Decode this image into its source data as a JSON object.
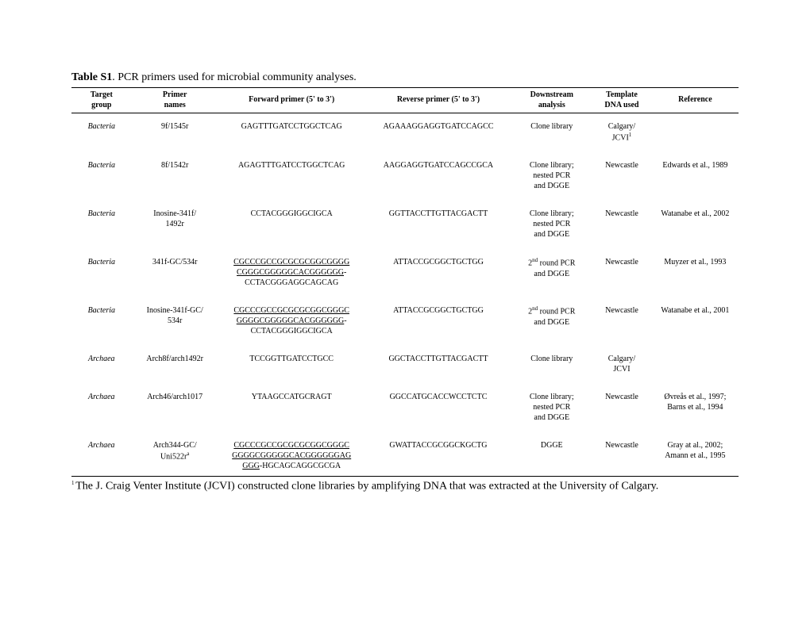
{
  "caption": {
    "label": "Table S1",
    "text": ". PCR primers used for microbial community analyses."
  },
  "headers": {
    "target": {
      "top": "Target",
      "bottom": "group"
    },
    "primer": {
      "top": "Primer",
      "bottom": "names"
    },
    "forward": "Forward primer (5' to 3')",
    "reverse": "Reverse primer (5' to 3')",
    "downstream": {
      "top": "Downstream",
      "bottom": "analysis"
    },
    "template": {
      "top": "Template",
      "bottom": "DNA used"
    },
    "reference": "Reference"
  },
  "rows": [
    {
      "target": "Bacteria",
      "primer": "9f/1545r",
      "forward_plain": "GAGTTTGATCCTGGCTCAG",
      "reverse": "AGAAAGGAGGTGATCCAGCC",
      "downstream": "Clone library",
      "template": "Calgary/\nJCVI¹",
      "reference": ""
    },
    {
      "target": "Bacteria",
      "primer": "8f/1542r",
      "forward_plain": "AGAGTTTGATCCTGGCTCAG",
      "reverse": "AAGGAGGTGATCCAGCCGCA",
      "downstream": "Clone library;\nnested PCR\nand DGGE",
      "template": "Newcastle",
      "reference": "Edwards et al., 1989"
    },
    {
      "target": "Bacteria",
      "primer": "Inosine-341f/\n1492r",
      "forward_plain": "CCTACGGGIGGCIGCA",
      "reverse": "GGTTACCTTGTTACGACTT",
      "downstream": "Clone library;\nnested PCR\nand  DGGE",
      "template": "Newcastle",
      "reference": "Watanabe et al., 2002"
    },
    {
      "target": "Bacteria",
      "primer": "341f-GC/534r",
      "forward_under": "CGCCCGCCGCGCGCGGCGGGG\nCGGGCGGGGGCACGGGGGG",
      "forward_after": "-\nCCTACGGGAGGCAGCAG",
      "reverse": "ATTACCGCGGCTGCTGG",
      "downstream_html": "2<sup>nd</sup> round PCR\nand DGGE",
      "template": "Newcastle",
      "reference": "Muyzer et al., 1993"
    },
    {
      "target": "Bacteria",
      "primer": "Inosine-341f-GC/\n534r",
      "forward_under": "CGCCCGCCGCGCGCGGCGGGC\nGGGGCGGGGGCACGGGGGG",
      "forward_after": "-\nCCTACGGGIGGCIGCA",
      "reverse": "ATTACCGCGGCTGCTGG",
      "downstream_html": "2<sup>nd</sup> round PCR\nand DGGE",
      "template": "Newcastle",
      "reference": "Watanabe et al., 2001"
    },
    {
      "target": "Archaea",
      "primer": "Arch8f/arch1492r",
      "forward_plain": "TCCGGTTGATCCTGCC",
      "reverse": "GGCTACCTTGTTACGACTT",
      "downstream": "Clone library",
      "template": "Calgary/\nJCVI",
      "reference": ""
    },
    {
      "target": "Archaea",
      "primer": "Arch46/arch1017",
      "forward_plain": "YTAAGCCATGCRAGT",
      "reverse": "GGCCATGCACCWCCTCTC",
      "downstream": "Clone library;\nnested PCR\nand DGGE",
      "template": "Newcastle",
      "reference": "Øvreås et al., 1997;\nBarns et al., 1994"
    },
    {
      "target": "Archaea",
      "primer_html": "Arch344-GC/\nUni522r<sup>a</sup>",
      "forward_under": "CGCCCGCCGCGCGCGGCGGGC\nGGGGCGGGGGCACGGGGGGAG\nGGG",
      "forward_after": "-HGCAGCAGGCGCGA",
      "reverse": "GWATTACCGCGGCKGCTG",
      "downstream": "DGGE",
      "template": "Newcastle",
      "reference": "Gray at al., 2002;\nAmann et al., 1995"
    }
  ],
  "footnote": {
    "sup": "1 ",
    "text": "The J. Craig Venter Institute (JCVI) constructed clone libraries by amplifying DNA that was extracted at the University of Calgary."
  }
}
